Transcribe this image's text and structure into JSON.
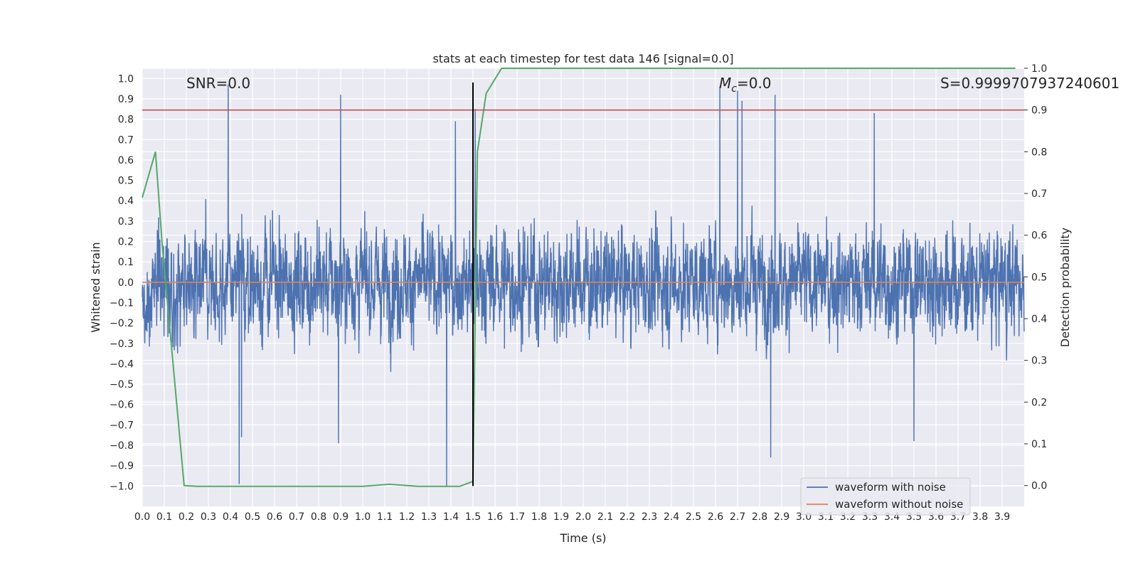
{
  "chart_data": {
    "type": "line",
    "title": "stats at each timestep for test data 146 [signal=0.0]",
    "xlabel": "Time (s)",
    "ylabel_left": "Whitened strain",
    "ylabel_right": "Detection probability",
    "xlim": [
      0.0,
      4.0
    ],
    "ylim_left": [
      -1.1,
      1.05
    ],
    "ylim_right": [
      -0.05,
      1.0
    ],
    "x_ticks": [
      "0.0",
      "0.1",
      "0.2",
      "0.3",
      "0.4",
      "0.5",
      "0.6",
      "0.7",
      "0.8",
      "0.9",
      "1.0",
      "1.1",
      "1.2",
      "1.3",
      "1.4",
      "1.5",
      "1.6",
      "1.7",
      "1.8",
      "1.9",
      "2.0",
      "2.1",
      "2.2",
      "2.3",
      "2.4",
      "2.5",
      "2.6",
      "2.7",
      "2.8",
      "2.9",
      "3.0",
      "3.1",
      "3.2",
      "3.3",
      "3.4",
      "3.5",
      "3.6",
      "3.7",
      "3.8",
      "3.9"
    ],
    "y_ticks_left": [
      "1.0",
      "0.9",
      "0.8",
      "0.7",
      "0.6",
      "0.5",
      "0.4",
      "0.3",
      "0.2",
      "0.1",
      "0.0",
      "−0.1",
      "−0.2",
      "−0.3",
      "−0.4",
      "−0.5",
      "−0.6",
      "−0.7",
      "−0.8",
      "−0.9",
      "−1.0"
    ],
    "y_ticks_right": [
      "1.0",
      "0.9",
      "0.8",
      "0.7",
      "0.6",
      "0.5",
      "0.4",
      "0.3",
      "0.2",
      "0.1",
      "0.0"
    ],
    "grid": true,
    "legend_position": "bottom-right",
    "annotations": {
      "snr": "SNR=0.0",
      "mc_symbol": "M",
      "mc_subscript": "c",
      "mc_value": "=0.0",
      "s": "S=0.9999707937240601"
    },
    "noise_waveform": {
      "name": "waveform with noise",
      "color": "#4c72b0",
      "x_range": [
        0.0,
        4.0
      ],
      "typical_amplitude": 0.35,
      "peaks": [
        {
          "x": 0.39,
          "y": 0.97
        },
        {
          "x": 0.44,
          "y": -0.99
        },
        {
          "x": 0.45,
          "y": -0.76
        },
        {
          "x": 0.9,
          "y": 0.92
        },
        {
          "x": 0.89,
          "y": -0.79
        },
        {
          "x": 1.38,
          "y": -1.0
        },
        {
          "x": 1.42,
          "y": 0.79
        },
        {
          "x": 1.51,
          "y": 0.85
        },
        {
          "x": 2.62,
          "y": 0.96
        },
        {
          "x": 2.7,
          "y": 0.94
        },
        {
          "x": 2.72,
          "y": 0.89
        },
        {
          "x": 2.87,
          "y": 0.92
        },
        {
          "x": 2.85,
          "y": -0.86
        },
        {
          "x": 3.32,
          "y": 0.83
        },
        {
          "x": 3.5,
          "y": -0.78
        }
      ]
    },
    "clean_waveform": {
      "name": "waveform without noise",
      "color": "#dd8452",
      "y": 0.0
    },
    "detection_probability": {
      "color": "#55a868",
      "x": [
        0.0,
        0.06,
        0.09,
        0.19,
        0.25,
        0.5,
        0.75,
        1.0,
        1.12,
        1.25,
        1.44,
        1.5,
        1.52,
        1.56,
        1.63,
        3.96
      ],
      "y": [
        0.69,
        0.8,
        0.58,
        0.0,
        -0.002,
        -0.002,
        -0.002,
        -0.002,
        0.003,
        -0.002,
        -0.002,
        0.01,
        0.8,
        0.94,
        1.0,
        1.0
      ]
    },
    "threshold": {
      "color": "#c44e52",
      "y_right": 0.9
    },
    "marker_line": {
      "color": "#000000",
      "x": 1.5,
      "y_left": [
        -1.0,
        0.98
      ]
    }
  }
}
